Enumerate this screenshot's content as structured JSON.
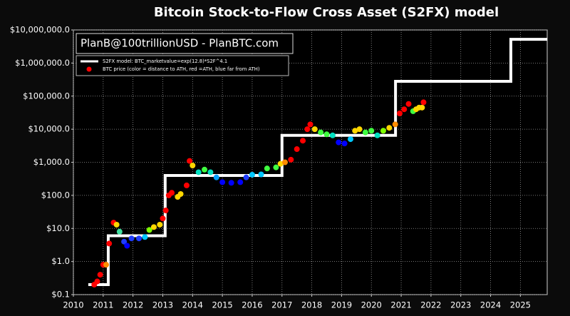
{
  "chart_data": {
    "type": "scatter",
    "title": "Bitcoin Stock-to-Flow Cross Asset (S2FX) model",
    "annotation": "PlanB@100trillionUSD  -  PlanBTC.com",
    "log_y": true,
    "grid": true,
    "legend": "upper left",
    "xlim": [
      2010,
      2025.9
    ],
    "xticks": [
      2010,
      2011,
      2012,
      2013,
      2014,
      2015,
      2016,
      2017,
      2018,
      2019,
      2020,
      2021,
      2022,
      2023,
      2024,
      2025
    ],
    "ylim": [
      0.1,
      10000000
    ],
    "yticks": [
      {
        "value": 0.1,
        "label": "$0.1"
      },
      {
        "value": 1,
        "label": "$1.0"
      },
      {
        "value": 10,
        "label": "$10.0"
      },
      {
        "value": 100,
        "label": "$100.0"
      },
      {
        "value": 1000,
        "label": "$1,000.0"
      },
      {
        "value": 10000,
        "label": "$10,000.0"
      },
      {
        "value": 100000,
        "label": "$100,000.0"
      },
      {
        "value": 1000000,
        "label": "$1,000,000.0"
      },
      {
        "value": 10000000,
        "label": "$10,000,000.0"
      }
    ],
    "series": [
      {
        "name": "S2FX model: BTC_marketvalue=exp(12.8)*S2F^4.1",
        "type": "line",
        "color": "#ffffff",
        "x": [
          2010.5,
          2011.17,
          2011.17,
          2013.08,
          2013.08,
          2017.0,
          2017.0,
          2020.81,
          2020.81,
          2024.68,
          2024.68,
          2025.9
        ],
        "values": [
          0.2,
          0.2,
          6,
          6,
          400,
          400,
          6500,
          6500,
          280000,
          280000,
          5200000,
          5200000
        ]
      },
      {
        "name": "BTC price (color = distance to ATH, red =ATH, blue far from ATH)",
        "type": "scatter",
        "x": [
          2010.7,
          2010.8,
          2010.9,
          2011.0,
          2011.1,
          2011.2,
          2011.35,
          2011.45,
          2011.55,
          2011.7,
          2011.8,
          2011.95,
          2012.2,
          2012.4,
          2012.55,
          2012.7,
          2012.9,
          2013.0,
          2013.1,
          2013.2,
          2013.3,
          2013.5,
          2013.6,
          2013.8,
          2013.9,
          2014.0,
          2014.2,
          2014.4,
          2014.6,
          2014.8,
          2015.0,
          2015.3,
          2015.6,
          2015.8,
          2016.0,
          2016.3,
          2016.5,
          2016.8,
          2016.95,
          2017.1,
          2017.3,
          2017.5,
          2017.7,
          2017.85,
          2017.95,
          2018.1,
          2018.3,
          2018.5,
          2018.7,
          2018.9,
          2019.1,
          2019.3,
          2019.45,
          2019.6,
          2019.8,
          2020.0,
          2020.2,
          2020.4,
          2020.6,
          2020.8,
          2020.95,
          2021.1,
          2021.25,
          2021.4,
          2021.5,
          2021.6,
          2021.7,
          2021.75
        ],
        "values": [
          0.2,
          0.25,
          0.4,
          0.8,
          0.8,
          3.5,
          15,
          13,
          8,
          4,
          3,
          5,
          5,
          5.5,
          9,
          11,
          13,
          20,
          35,
          100,
          120,
          90,
          110,
          200,
          1100,
          800,
          500,
          600,
          500,
          350,
          250,
          240,
          250,
          350,
          420,
          430,
          650,
          700,
          900,
          1000,
          1200,
          2500,
          4500,
          10000,
          14000,
          10000,
          8000,
          7000,
          6500,
          4000,
          3700,
          5000,
          9000,
          10000,
          8000,
          9000,
          6500,
          9000,
          11000,
          14000,
          30000,
          40000,
          58000,
          35000,
          40000,
          45000,
          45000,
          65000
        ],
        "colors": [
          "#ff0000",
          "#ff0000",
          "#ff0000",
          "#ff0000",
          "#ff8c00",
          "#ff0000",
          "#ff0000",
          "#ffd700",
          "#40e0a0",
          "#1e3cff",
          "#0000ff",
          "#1e3cff",
          "#1e3cff",
          "#00c8ff",
          "#7fff00",
          "#ffd700",
          "#ffd700",
          "#ff0000",
          "#ff0000",
          "#ff0000",
          "#ff0000",
          "#ffd700",
          "#ffd700",
          "#ff0000",
          "#ff0000",
          "#ffd700",
          "#00e0c0",
          "#40ff40",
          "#00e0c0",
          "#00a0ff",
          "#0000ff",
          "#0000ff",
          "#0000ff",
          "#1e3cff",
          "#00c8ff",
          "#00c8ff",
          "#40ff40",
          "#40ff40",
          "#ffd700",
          "#ff8c00",
          "#ff0000",
          "#ff0000",
          "#ff0000",
          "#ff0000",
          "#ff0000",
          "#ffd700",
          "#40ff40",
          "#40ff40",
          "#00e0c0",
          "#0000ff",
          "#0000ff",
          "#00c8ff",
          "#ffd700",
          "#ffd700",
          "#40ff40",
          "#40ff40",
          "#00e0c0",
          "#7fff00",
          "#ffd700",
          "#ff8c00",
          "#ff0000",
          "#ff0000",
          "#ff0000",
          "#40ff40",
          "#ffd700",
          "#ffd700",
          "#ffd700",
          "#ff0000"
        ]
      }
    ]
  }
}
